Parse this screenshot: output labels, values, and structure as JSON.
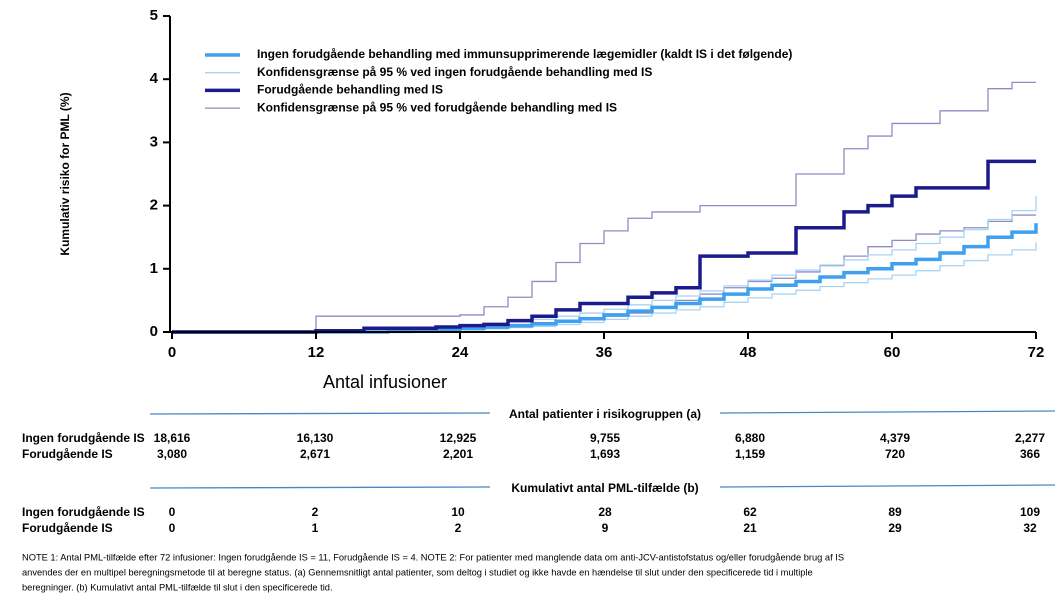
{
  "chart_data": {
    "type": "line",
    "step": "post",
    "xlabel": "Antal infusioner",
    "ylabel": "Kumulativ risiko for PML (%)",
    "x": [
      0,
      2,
      4,
      6,
      8,
      10,
      12,
      14,
      16,
      18,
      20,
      22,
      24,
      26,
      28,
      30,
      32,
      34,
      36,
      38,
      40,
      42,
      44,
      46,
      48,
      50,
      52,
      54,
      56,
      58,
      60,
      62,
      64,
      66,
      68,
      70,
      72
    ],
    "xlim": [
      0,
      72
    ],
    "xticks": [
      0,
      12,
      24,
      36,
      48,
      60,
      72
    ],
    "ylim": [
      0,
      5
    ],
    "yticks": [
      0,
      1,
      2,
      3,
      4,
      5
    ],
    "legend": "upper left",
    "series": [
      {
        "name": "Ingen forudgående behandling med immunsupprimerende lægemidler (kaldt IS i det følgende)",
        "color": "#3ea0ee",
        "width": 3.5,
        "values": [
          0,
          0,
          0,
          0,
          0,
          0,
          0,
          0,
          0,
          0.01,
          0.02,
          0.04,
          0.06,
          0.08,
          0.1,
          0.13,
          0.17,
          0.21,
          0.27,
          0.33,
          0.39,
          0.45,
          0.52,
          0.6,
          0.68,
          0.74,
          0.8,
          0.87,
          0.94,
          1.0,
          1.08,
          1.15,
          1.25,
          1.35,
          1.5,
          1.58,
          1.72
        ]
      },
      {
        "name": "Konfidensgrænse på 95 % ved ingen forudgående behandling med IS",
        "color": "#a9d3f4",
        "width": 1.3,
        "values": [
          0,
          0,
          0,
          0,
          0,
          0,
          0,
          0,
          0,
          0.02,
          0.04,
          0.07,
          0.1,
          0.13,
          0.16,
          0.2,
          0.25,
          0.3,
          0.36,
          0.43,
          0.5,
          0.57,
          0.65,
          0.73,
          0.82,
          0.9,
          0.98,
          1.06,
          1.14,
          1.22,
          1.3,
          1.4,
          1.5,
          1.62,
          1.78,
          1.92,
          2.15
        ]
      },
      {
        "name": "Forudgående behandling med IS",
        "color": "#1b1b8c",
        "width": 3.5,
        "values": [
          0,
          0,
          0,
          0,
          0,
          0,
          0.02,
          0.02,
          0.06,
          0.06,
          0.06,
          0.08,
          0.1,
          0.12,
          0.18,
          0.25,
          0.35,
          0.45,
          0.45,
          0.55,
          0.62,
          0.7,
          1.2,
          1.2,
          1.25,
          1.25,
          1.65,
          1.65,
          1.9,
          2.0,
          2.15,
          2.28,
          2.28,
          2.28,
          2.7,
          2.7,
          2.7
        ]
      },
      {
        "name": "Konfidensgrænse på 95 % ved forudgående behandling med IS",
        "color": "#8e8cc6",
        "width": 1.3,
        "values": [
          0,
          0,
          0,
          0,
          0,
          0,
          0.25,
          0.25,
          0.25,
          0.25,
          0.25,
          0.25,
          0.27,
          0.4,
          0.55,
          0.8,
          1.1,
          1.4,
          1.6,
          1.8,
          1.9,
          1.9,
          2.0,
          2.0,
          2.0,
          2.0,
          2.5,
          2.5,
          2.9,
          3.1,
          3.3,
          3.3,
          3.5,
          3.5,
          3.85,
          3.95,
          3.95
        ]
      }
    ],
    "extra_series": [
      {
        "color": "#a9d3f4",
        "width": 1.3,
        "values": [
          0,
          0,
          0,
          0,
          0,
          0,
          0,
          0,
          0,
          0,
          0.01,
          0.02,
          0.03,
          0.05,
          0.07,
          0.09,
          0.12,
          0.15,
          0.2,
          0.25,
          0.3,
          0.35,
          0.4,
          0.47,
          0.54,
          0.6,
          0.66,
          0.72,
          0.78,
          0.84,
          0.9,
          0.97,
          1.05,
          1.13,
          1.22,
          1.3,
          1.42
        ]
      },
      {
        "color": "#8e8cc6",
        "width": 1.3,
        "values": [
          0,
          0,
          0,
          0,
          0,
          0,
          0,
          0,
          0,
          0,
          0,
          0.02,
          0.04,
          0.06,
          0.08,
          0.12,
          0.16,
          0.2,
          0.25,
          0.3,
          0.4,
          0.5,
          0.6,
          0.7,
          0.8,
          0.85,
          0.95,
          1.05,
          1.2,
          1.35,
          1.45,
          1.55,
          1.6,
          1.65,
          1.75,
          1.85,
          1.85
        ]
      }
    ]
  },
  "risk_tables": [
    {
      "title": "Antal patienter i risikogruppen (a)",
      "rows": [
        {
          "label": "Ingen forudgående IS",
          "values": [
            "18,616",
            "16,130",
            "12,925",
            "9,755",
            "6,880",
            "4,379",
            "2,277"
          ]
        },
        {
          "label": "Forudgående IS",
          "values": [
            "3,080",
            "2,671",
            "2,201",
            "1,693",
            "1,159",
            "720",
            "366"
          ]
        }
      ]
    },
    {
      "title": "Kumulativt antal PML-tilfælde (b)",
      "rows": [
        {
          "label": "Ingen forudgående IS",
          "values": [
            "0",
            "2",
            "10",
            "28",
            "62",
            "89",
            "109"
          ]
        },
        {
          "label": "Forudgående IS",
          "values": [
            "0",
            "1",
            "2",
            "9",
            "21",
            "29",
            "32"
          ]
        }
      ]
    }
  ],
  "note": [
    "NOTE 1: Antal PML-tilfælde efter 72 infusioner: Ingen forudgående IS = 11, Forudgående IS = 4. NOTE 2: For patienter med manglende data om anti-JCV-antistofstatus og/eller forudgående brug af IS",
    "anvendes der en multipel beregningsmetode til at beregne status.  (a) Gennemsnitligt antal patienter, som deltog i studiet og ikke havde en hændelse til slut under den specificerede tid i multiple",
    "beregninger. (b) Kumulativt antal PML-tilfælde til slut i den specificerede tid."
  ]
}
